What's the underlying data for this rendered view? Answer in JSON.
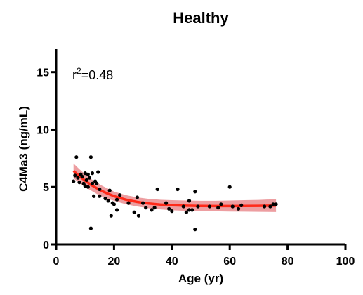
{
  "chart_data": {
    "type": "scatter",
    "title": "Healthy",
    "xlabel": "Age (yr)",
    "ylabel": "C4Ma3 (ng/mL)",
    "xlim": [
      0,
      100
    ],
    "ylim": [
      0,
      17
    ],
    "xticks": [
      0,
      20,
      40,
      60,
      80,
      100
    ],
    "yticks": [
      0,
      5,
      10,
      15
    ],
    "grid": false,
    "annotation": {
      "r_base": "r",
      "r_exp": "2",
      "r_value": "=0.48"
    },
    "colors": {
      "points": "#000000",
      "fit_line": "#ff2a1a",
      "confidence_band": "#e9868a",
      "axes": "#000000"
    },
    "series": [
      {
        "type": "scatter",
        "points": [
          [
            6,
            5.5
          ],
          [
            6.5,
            6.0
          ],
          [
            7,
            7.6
          ],
          [
            7.5,
            5.8
          ],
          [
            8,
            5.4
          ],
          [
            8.5,
            6.1
          ],
          [
            9,
            5.9
          ],
          [
            9.5,
            5.3
          ],
          [
            10,
            5.1
          ],
          [
            10,
            6.2
          ],
          [
            10.5,
            5.6
          ],
          [
            11,
            6.1
          ],
          [
            11,
            5.0
          ],
          [
            11.5,
            5.8
          ],
          [
            12,
            7.6
          ],
          [
            12,
            1.4
          ],
          [
            12.5,
            5.3
          ],
          [
            12.5,
            6.2
          ],
          [
            13,
            4.2
          ],
          [
            13.5,
            5.5
          ],
          [
            14,
            5.3
          ],
          [
            14.5,
            6.3
          ],
          [
            15,
            4.8
          ],
          [
            15,
            4.2
          ],
          [
            17,
            4.0
          ],
          [
            18,
            3.8
          ],
          [
            18.5,
            4.7
          ],
          [
            19,
            2.5
          ],
          [
            19.5,
            3.6
          ],
          [
            20,
            3.5
          ],
          [
            21,
            3.0
          ],
          [
            21,
            3.9
          ],
          [
            22,
            4.3
          ],
          [
            25,
            3.6
          ],
          [
            27,
            2.8
          ],
          [
            28,
            4.1
          ],
          [
            28.5,
            2.5
          ],
          [
            30,
            3.6
          ],
          [
            31,
            3.2
          ],
          [
            33,
            3.0
          ],
          [
            34,
            3.2
          ],
          [
            35,
            4.8
          ],
          [
            38,
            3.6
          ],
          [
            39,
            3.1
          ],
          [
            40,
            2.9
          ],
          [
            42,
            4.8
          ],
          [
            44,
            3.3
          ],
          [
            45,
            2.8
          ],
          [
            46,
            3.0
          ],
          [
            46,
            3.8
          ],
          [
            47,
            3.0
          ],
          [
            48,
            4.6
          ],
          [
            48,
            1.3
          ],
          [
            49,
            3.3
          ],
          [
            53,
            3.3
          ],
          [
            56,
            3.2
          ],
          [
            57,
            3.5
          ],
          [
            60,
            5.0
          ],
          [
            61,
            3.3
          ],
          [
            63,
            3.1
          ],
          [
            64,
            3.4
          ],
          [
            72,
            3.3
          ],
          [
            74,
            3.3
          ],
          [
            75,
            3.5
          ],
          [
            76,
            3.5
          ]
        ]
      },
      {
        "type": "line",
        "name": "",
        "x": [
          6,
          8,
          10,
          12,
          14,
          16,
          18,
          20,
          24,
          28,
          32,
          36,
          40,
          45,
          50,
          55,
          60,
          65,
          70,
          76
        ],
        "y": [
          6.4,
          5.95,
          5.55,
          5.2,
          4.9,
          4.62,
          4.4,
          4.2,
          3.9,
          3.7,
          3.56,
          3.47,
          3.41,
          3.37,
          3.35,
          3.34,
          3.34,
          3.35,
          3.36,
          3.38
        ],
        "band_lower": [
          5.75,
          5.35,
          5.0,
          4.7,
          4.4,
          4.15,
          3.95,
          3.8,
          3.5,
          3.3,
          3.15,
          3.05,
          2.97,
          2.92,
          2.9,
          2.88,
          2.86,
          2.85,
          2.84,
          2.82
        ],
        "band_upper": [
          7.05,
          6.55,
          6.1,
          5.7,
          5.4,
          5.09,
          4.85,
          4.6,
          4.3,
          4.1,
          3.97,
          3.89,
          3.85,
          3.82,
          3.8,
          3.8,
          3.82,
          3.85,
          3.88,
          3.94
        ]
      }
    ]
  }
}
